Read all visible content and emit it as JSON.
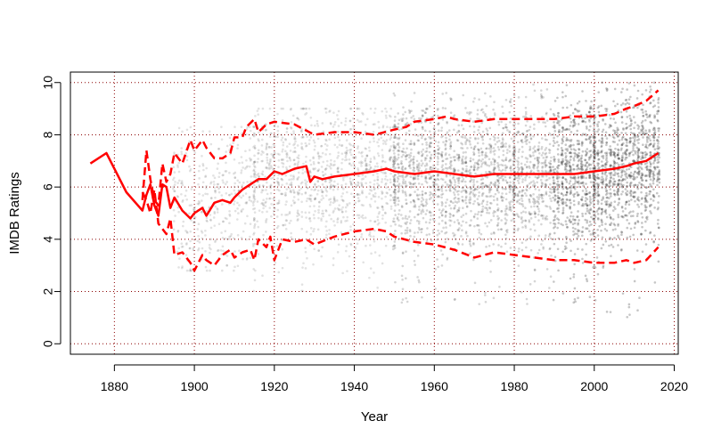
{
  "chart_data": {
    "type": "scatter",
    "title": "",
    "xlabel": "Year",
    "ylabel": "IMDB Ratings",
    "xlim": [
      1869,
      2021
    ],
    "ylim": [
      -0.4,
      10.4
    ],
    "x_ticks": [
      1880,
      1900,
      1920,
      1940,
      1960,
      1980,
      2000,
      2020
    ],
    "y_ticks": [
      0,
      2,
      4,
      6,
      8,
      10
    ],
    "grid": true,
    "legend": "none",
    "colors": {
      "points": "#333333",
      "lines": "#ff0000",
      "grid": "#8b0000"
    },
    "points_description_bands": [
      {
        "x_from": 1895,
        "x_to": 1915,
        "low": 2.8,
        "high": 8.3
      },
      {
        "x_from": 1915,
        "x_to": 1950,
        "low": 2.0,
        "high": 9.0
      },
      {
        "x_from": 1950,
        "x_to": 1980,
        "low": 1.5,
        "high": 9.6
      },
      {
        "x_from": 1980,
        "x_to": 2000,
        "low": 1.5,
        "high": 10.0
      },
      {
        "x_from": 2000,
        "x_to": 2016,
        "low": 1.0,
        "high": 10.0
      }
    ],
    "series": [
      {
        "role": "median",
        "style": "solid",
        "x": [
          1874,
          1878,
          1883,
          1887,
          1888,
          1889,
          1890,
          1891,
          1892,
          1893,
          1894,
          1895,
          1897,
          1899,
          1900,
          1902,
          1903,
          1905,
          1907,
          1909,
          1910,
          1912,
          1914,
          1916,
          1918,
          1920,
          1922,
          1925,
          1928,
          1929,
          1930,
          1932,
          1935,
          1940,
          1945,
          1948,
          1950,
          1955,
          1960,
          1965,
          1970,
          1975,
          1980,
          1985,
          1990,
          1995,
          2000,
          2005,
          2008,
          2010,
          2013,
          2016
        ],
        "y": [
          6.9,
          7.3,
          5.8,
          5.1,
          5.7,
          6.1,
          5.3,
          4.9,
          6.1,
          6.0,
          5.2,
          5.6,
          5.1,
          4.8,
          5.0,
          5.2,
          4.9,
          5.4,
          5.5,
          5.4,
          5.6,
          5.9,
          6.1,
          6.3,
          6.3,
          6.6,
          6.5,
          6.7,
          6.8,
          6.2,
          6.4,
          6.3,
          6.4,
          6.5,
          6.6,
          6.7,
          6.6,
          6.5,
          6.6,
          6.5,
          6.4,
          6.5,
          6.5,
          6.5,
          6.5,
          6.5,
          6.6,
          6.7,
          6.8,
          6.9,
          7.0,
          7.3
        ]
      },
      {
        "role": "upper quantile",
        "style": "dashed",
        "x": [
          1887,
          1888,
          1889,
          1890,
          1891,
          1892,
          1893,
          1894,
          1895,
          1897,
          1899,
          1900,
          1902,
          1903,
          1905,
          1907,
          1909,
          1910,
          1912,
          1913,
          1915,
          1916,
          1918,
          1920,
          1925,
          1930,
          1935,
          1940,
          1945,
          1950,
          1953,
          1955,
          1960,
          1963,
          1965,
          1970,
          1975,
          1980,
          1985,
          1990,
          1995,
          2000,
          2005,
          2008,
          2010,
          2013,
          2016
        ],
        "y": [
          5.5,
          7.4,
          6.3,
          5.5,
          5.3,
          6.9,
          6.2,
          6.5,
          7.3,
          6.9,
          7.8,
          7.4,
          7.8,
          7.5,
          7.1,
          7.1,
          7.3,
          7.9,
          7.9,
          8.3,
          8.6,
          8.1,
          8.4,
          8.5,
          8.4,
          8.0,
          8.1,
          8.1,
          8.0,
          8.2,
          8.3,
          8.5,
          8.6,
          8.7,
          8.6,
          8.5,
          8.6,
          8.6,
          8.6,
          8.6,
          8.7,
          8.7,
          8.8,
          9.0,
          9.1,
          9.3,
          9.7
        ]
      },
      {
        "role": "lower quantile",
        "style": "dashed",
        "x": [
          1887,
          1888,
          1889,
          1890,
          1891,
          1892,
          1893,
          1894,
          1895,
          1897,
          1899,
          1900,
          1902,
          1903,
          1905,
          1907,
          1909,
          1910,
          1912,
          1914,
          1915,
          1916,
          1918,
          1919,
          1920,
          1922,
          1925,
          1928,
          1930,
          1935,
          1940,
          1945,
          1948,
          1950,
          1955,
          1960,
          1965,
          1970,
          1975,
          1980,
          1985,
          1990,
          1995,
          2000,
          2005,
          2008,
          2010,
          2013,
          2016
        ],
        "y": [
          5.8,
          5.5,
          5.0,
          5.9,
          4.6,
          4.4,
          4.2,
          4.8,
          3.4,
          3.5,
          3.1,
          2.8,
          3.4,
          3.2,
          3.0,
          3.4,
          3.6,
          3.3,
          3.5,
          3.6,
          3.2,
          4.0,
          3.7,
          4.1,
          3.2,
          4.0,
          3.9,
          4.0,
          3.8,
          4.1,
          4.3,
          4.4,
          4.3,
          4.1,
          3.9,
          3.8,
          3.6,
          3.3,
          3.5,
          3.4,
          3.3,
          3.2,
          3.2,
          3.1,
          3.1,
          3.2,
          3.1,
          3.2,
          3.7
        ]
      }
    ]
  }
}
